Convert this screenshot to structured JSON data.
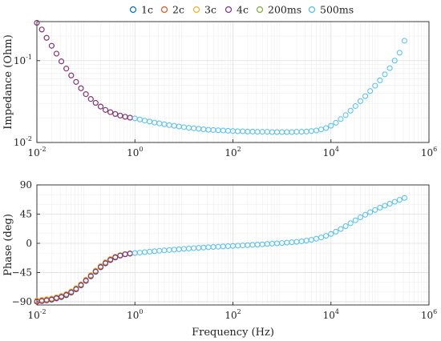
{
  "chart_data": [
    {
      "type": "scatter",
      "xscale": "log",
      "yscale": "log",
      "xlim": [
        0.01,
        1000000
      ],
      "ylim": [
        0.01,
        0.3
      ],
      "ylabel": "Impedance (Ohm)",
      "xlabel": "",
      "x_ticks": [
        {
          "base": "10",
          "exp": "-2",
          "value": 0.01
        },
        {
          "base": "10",
          "exp": "0",
          "value": 1
        },
        {
          "base": "10",
          "exp": "2",
          "value": 100
        },
        {
          "base": "10",
          "exp": "4",
          "value": 10000
        },
        {
          "base": "10",
          "exp": "6",
          "value": 1000000
        }
      ],
      "y_ticks": [
        {
          "base": "10",
          "exp": "-2",
          "value": 0.01
        },
        {
          "base": "10",
          "exp": "-1",
          "value": 0.1
        }
      ],
      "grid": true,
      "series": [
        {
          "name": "1c",
          "color": "#0072BD",
          "x": [
            0.01,
            0.0126,
            0.0158,
            0.02,
            0.0251,
            0.0316,
            0.0398,
            0.0501,
            0.0631,
            0.0794,
            0.1,
            0.126,
            0.158,
            0.2,
            0.251,
            0.316,
            0.398,
            0.501,
            0.631,
            0.794
          ],
          "y": [
            0.29,
            0.24,
            0.19,
            0.152,
            0.122,
            0.098,
            0.08,
            0.066,
            0.055,
            0.046,
            0.039,
            0.034,
            0.0305,
            0.0275,
            0.025,
            0.0235,
            0.0223,
            0.0213,
            0.0206,
            0.0201
          ]
        },
        {
          "name": "2c",
          "color": "#D95319",
          "x": [
            0.01,
            0.0126,
            0.0158,
            0.02,
            0.0251,
            0.0316,
            0.0398,
            0.0501,
            0.0631,
            0.0794,
            0.1,
            0.126,
            0.158,
            0.2,
            0.251,
            0.316,
            0.398,
            0.501,
            0.631,
            0.794
          ],
          "y": [
            0.29,
            0.24,
            0.19,
            0.152,
            0.122,
            0.098,
            0.08,
            0.066,
            0.055,
            0.046,
            0.039,
            0.034,
            0.0305,
            0.0275,
            0.025,
            0.0235,
            0.0223,
            0.0213,
            0.0206,
            0.0201
          ]
        },
        {
          "name": "3c",
          "color": "#EDB120",
          "x": [
            0.01,
            0.0126,
            0.0158,
            0.02,
            0.0251,
            0.0316,
            0.0398,
            0.0501,
            0.0631,
            0.0794,
            0.1,
            0.126,
            0.158,
            0.2,
            0.251,
            0.316,
            0.398,
            0.501,
            0.631,
            0.794
          ],
          "y": [
            0.29,
            0.24,
            0.19,
            0.152,
            0.122,
            0.098,
            0.08,
            0.066,
            0.055,
            0.046,
            0.039,
            0.034,
            0.0305,
            0.0275,
            0.025,
            0.0235,
            0.0223,
            0.0213,
            0.0206,
            0.0201
          ]
        },
        {
          "name": "4c",
          "color": "#7E2F8E",
          "x": [
            0.01,
            0.0126,
            0.0158,
            0.02,
            0.0251,
            0.0316,
            0.0398,
            0.0501,
            0.0631,
            0.0794,
            0.1,
            0.126,
            0.158,
            0.2,
            0.251,
            0.316,
            0.398,
            0.501,
            0.631,
            0.794
          ],
          "y": [
            0.29,
            0.24,
            0.19,
            0.152,
            0.122,
            0.098,
            0.08,
            0.066,
            0.055,
            0.046,
            0.039,
            0.034,
            0.0305,
            0.0275,
            0.025,
            0.0235,
            0.0223,
            0.0213,
            0.0206,
            0.0201
          ]
        },
        {
          "name": "200ms",
          "color": "#77AC30",
          "x": [],
          "y": []
        },
        {
          "name": "500ms",
          "color": "#4DBEEE",
          "x": [
            1,
            1.259,
            1.585,
            1.995,
            2.512,
            3.162,
            3.981,
            5.012,
            6.31,
            7.943,
            10,
            12.59,
            15.85,
            19.95,
            25.12,
            31.62,
            39.81,
            50.12,
            63.1,
            79.43,
            100,
            125.9,
            158.5,
            199.5,
            251.2,
            316.2,
            398.1,
            501.2,
            631,
            794.3,
            1000,
            1259,
            1585,
            1995,
            2512,
            3162,
            3981,
            5012,
            6310,
            7943,
            10000,
            12590,
            15850,
            19950,
            25120,
            31620,
            39810,
            50120,
            63100,
            79430,
            100000,
            125900,
            158500,
            199500,
            251200,
            316200
          ],
          "y": [
            0.0197,
            0.0191,
            0.0185,
            0.018,
            0.0175,
            0.0171,
            0.0167,
            0.0163,
            0.016,
            0.0157,
            0.0154,
            0.0151,
            0.0149,
            0.0147,
            0.0145,
            0.0143,
            0.0142,
            0.0141,
            0.014,
            0.0139,
            0.0138,
            0.0137,
            0.0137,
            0.0136,
            0.0136,
            0.0135,
            0.0135,
            0.0135,
            0.0134,
            0.0134,
            0.0134,
            0.0134,
            0.0134,
            0.0135,
            0.0135,
            0.0136,
            0.0138,
            0.014,
            0.0144,
            0.015,
            0.016,
            0.0174,
            0.0193,
            0.0216,
            0.0245,
            0.0279,
            0.032,
            0.0368,
            0.0425,
            0.0494,
            0.0575,
            0.068,
            0.081,
            0.1,
            0.125,
            0.175
          ]
        }
      ]
    },
    {
      "type": "scatter",
      "xscale": "log",
      "xlim": [
        0.01,
        1000000
      ],
      "ylim": [
        -95,
        90
      ],
      "xlabel": "Frequency (Hz)",
      "ylabel": "Phase (deg)",
      "x_ticks": [
        {
          "base": "10",
          "exp": "-2",
          "value": 0.01
        },
        {
          "base": "10",
          "exp": "0",
          "value": 1
        },
        {
          "base": "10",
          "exp": "2",
          "value": 100
        },
        {
          "base": "10",
          "exp": "4",
          "value": 10000
        },
        {
          "base": "10",
          "exp": "6",
          "value": 1000000
        }
      ],
      "y_ticks": [
        {
          "label": "90",
          "value": 90
        },
        {
          "label": "45",
          "value": 45
        },
        {
          "label": "0",
          "value": 0
        },
        {
          "label": "−45",
          "value": -45
        },
        {
          "label": "−90",
          "value": -90
        }
      ],
      "grid": true,
      "series": [
        {
          "name": "1c",
          "color": "#0072BD",
          "x": [
            0.01,
            0.0126,
            0.0158,
            0.02,
            0.0251,
            0.0316,
            0.0398,
            0.0501,
            0.0631,
            0.0794,
            0.1,
            0.126,
            0.158,
            0.2,
            0.251,
            0.316,
            0.398,
            0.501,
            0.631,
            0.794
          ],
          "y": [
            -90,
            -89,
            -88,
            -87,
            -85,
            -83,
            -80,
            -76,
            -71,
            -65,
            -58,
            -51,
            -44,
            -37,
            -31,
            -26,
            -22,
            -19,
            -17,
            -16
          ]
        },
        {
          "name": "2c",
          "color": "#D95319",
          "x": [
            0.01,
            0.0126,
            0.0158,
            0.02,
            0.0251,
            0.0316,
            0.0398,
            0.0501,
            0.0631,
            0.0794,
            0.1,
            0.126,
            0.158,
            0.2,
            0.251,
            0.316,
            0.398,
            0.501,
            0.631,
            0.794
          ],
          "y": [
            -89,
            -88,
            -87,
            -86,
            -84,
            -82,
            -79,
            -75,
            -70,
            -64,
            -57,
            -50,
            -43,
            -36,
            -30,
            -25,
            -21,
            -18.5,
            -16.5,
            -15.5
          ]
        },
        {
          "name": "3c",
          "color": "#EDB120",
          "x": [
            0.01,
            0.0126,
            0.0158,
            0.02,
            0.0251,
            0.0316,
            0.0398,
            0.0501,
            0.0631,
            0.0794,
            0.1,
            0.126,
            0.158,
            0.2,
            0.251,
            0.316,
            0.398,
            0.501,
            0.631,
            0.794
          ],
          "y": [
            -88,
            -87,
            -86,
            -85,
            -83,
            -81,
            -78,
            -74,
            -69,
            -63,
            -56,
            -49,
            -42,
            -35,
            -29,
            -24,
            -20.5,
            -18,
            -16.5,
            -15.5
          ]
        },
        {
          "name": "4c",
          "color": "#7E2F8E",
          "x": [
            0.01,
            0.0126,
            0.0158,
            0.02,
            0.0251,
            0.0316,
            0.0398,
            0.0501,
            0.0631,
            0.0794,
            0.1,
            0.126,
            0.158,
            0.2,
            0.251,
            0.316,
            0.398,
            0.501,
            0.631,
            0.794
          ],
          "y": [
            -90,
            -89,
            -88,
            -86.5,
            -84.5,
            -82.5,
            -79.5,
            -75.5,
            -70.5,
            -64.5,
            -57.5,
            -50.5,
            -43.5,
            -36.5,
            -30.5,
            -25.5,
            -21.5,
            -18.8,
            -16.8,
            -15.8
          ]
        },
        {
          "name": "200ms",
          "color": "#77AC30",
          "x": [],
          "y": []
        },
        {
          "name": "500ms",
          "color": "#4DBEEE",
          "x": [
            1,
            1.259,
            1.585,
            1.995,
            2.512,
            3.162,
            3.981,
            5.012,
            6.31,
            7.943,
            10,
            12.59,
            15.85,
            19.95,
            25.12,
            31.62,
            39.81,
            50.12,
            63.1,
            79.43,
            100,
            125.9,
            158.5,
            199.5,
            251.2,
            316.2,
            398.1,
            501.2,
            631,
            794.3,
            1000,
            1259,
            1585,
            1995,
            2512,
            3162,
            3981,
            5012,
            6310,
            7943,
            10000,
            12590,
            15850,
            19950,
            25120,
            31620,
            39810,
            50120,
            63100,
            79430,
            100000,
            125900,
            158500,
            199500,
            251200,
            316200
          ],
          "y": [
            -15,
            -14.3,
            -13.6,
            -12.9,
            -12.2,
            -11.5,
            -10.9,
            -10.3,
            -9.7,
            -9.1,
            -8.5,
            -8,
            -7.5,
            -7,
            -6.5,
            -6,
            -5.6,
            -5.2,
            -4.8,
            -4.4,
            -4,
            -3.6,
            -3.2,
            -2.8,
            -2.4,
            -2,
            -1.5,
            -1,
            -0.5,
            0,
            0.5,
            1,
            1.6,
            2.3,
            3.1,
            4.1,
            5.4,
            7,
            9,
            11.5,
            14.5,
            18,
            22,
            26.5,
            31,
            35.5,
            40,
            44,
            48,
            51.5,
            55,
            58,
            61,
            64,
            67,
            70
          ]
        }
      ]
    }
  ],
  "legend": {
    "placement": "top",
    "items": [
      {
        "label": "1c",
        "color": "#0072BD"
      },
      {
        "label": "2c",
        "color": "#D95319"
      },
      {
        "label": "3c",
        "color": "#EDB120"
      },
      {
        "label": "4c",
        "color": "#7E2F8E"
      },
      {
        "label": "200ms",
        "color": "#77AC30"
      },
      {
        "label": "500ms",
        "color": "#4DBEEE"
      }
    ]
  }
}
